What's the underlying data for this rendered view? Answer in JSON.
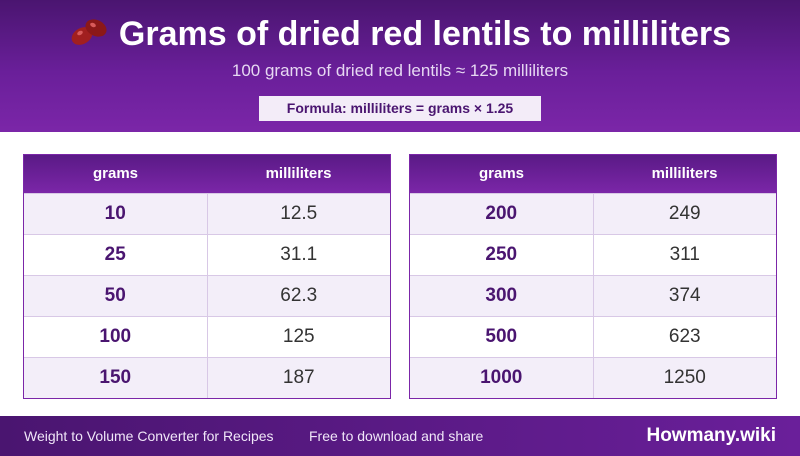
{
  "header": {
    "title": "Grams of dried red lentils to milliliters",
    "subtitle": "100 grams of dried red lentils ≈ 125 milliliters",
    "formula": "Formula: milliliters = grams × 1.25",
    "icon": "red-beans-icon"
  },
  "tables": [
    {
      "headers": [
        "grams",
        "milliliters"
      ],
      "rows": [
        [
          "10",
          "12.5"
        ],
        [
          "25",
          "31.1"
        ],
        [
          "50",
          "62.3"
        ],
        [
          "100",
          "125"
        ],
        [
          "150",
          "187"
        ]
      ]
    },
    {
      "headers": [
        "grams",
        "milliliters"
      ],
      "rows": [
        [
          "200",
          "249"
        ],
        [
          "250",
          "311"
        ],
        [
          "300",
          "374"
        ],
        [
          "500",
          "623"
        ],
        [
          "1000",
          "1250"
        ]
      ]
    }
  ],
  "footer": {
    "left": "Weight to Volume Converter for Recipes",
    "middle": "Free to download and share",
    "brand": "Howmany.wiki"
  },
  "colors": {
    "primary": "#6a1f9a",
    "dark": "#4a1570",
    "row_alt": "#f3eef9"
  }
}
